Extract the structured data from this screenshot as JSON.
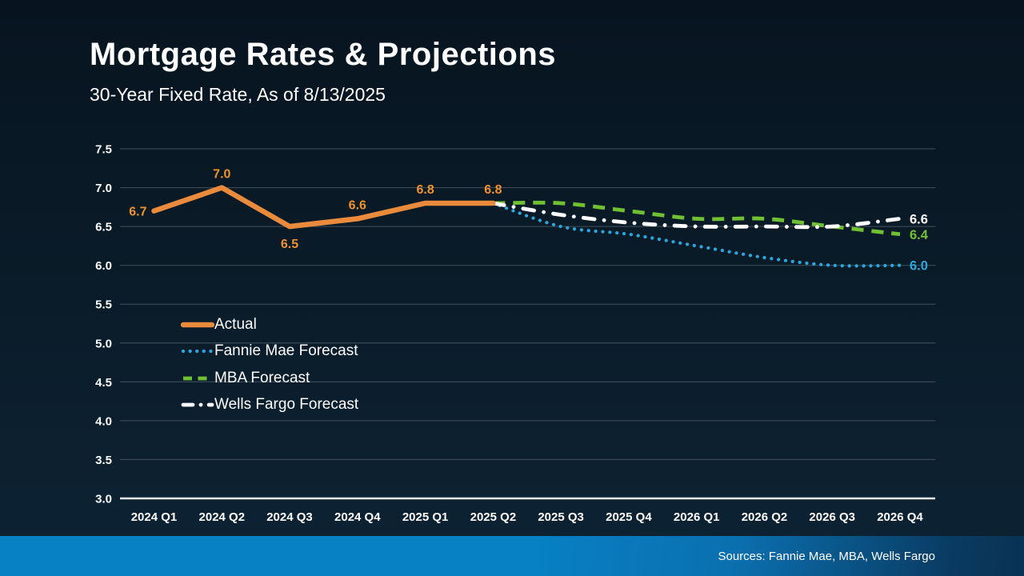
{
  "header": {
    "title": "Mortgage Rates & Projections",
    "subtitle": "30-Year Fixed Rate, As of 8/13/2025"
  },
  "footer": {
    "sources": "Sources: Fannie Mae, MBA, Wells Fargo"
  },
  "colors": {
    "background_top": "#071420",
    "background_bottom": "#0d2334",
    "footer_gradient_left": "#0880c4",
    "footer_gradient_mid": "#0b6fae",
    "footer_gradient_right": "#0a3a61",
    "grid_line": "#44525e",
    "axis_line": "#e9eef2",
    "text": "#ffffff",
    "actual_orange": "#e98a3c",
    "fannie_blue": "#2ba7e0",
    "mba_green": "#70c033",
    "wells_white": "#ffffff"
  },
  "chart_data": {
    "type": "line",
    "title": "Mortgage Rates & Projections",
    "subtitle": "30-Year Fixed Rate, As of 8/13/2025",
    "categories": [
      "2024 Q1",
      "2024 Q2",
      "2024 Q3",
      "2024 Q4",
      "2025 Q1",
      "2025 Q2",
      "2025 Q3",
      "2025 Q4",
      "2026 Q1",
      "2026 Q2",
      "2026 Q3",
      "2026 Q4"
    ],
    "xlabel": "",
    "ylabel": "",
    "ylim": [
      3.0,
      7.5
    ],
    "ytick_labels": [
      "7.5",
      "7.0",
      "6.5",
      "6.0",
      "5.5",
      "5.0",
      "4.5",
      "4.0",
      "3.5",
      "3.0"
    ],
    "grid": "horizontal",
    "legend_position": "inside-left",
    "series": [
      {
        "name": "Actual",
        "style": "solid",
        "color": "#e98a3c",
        "label_color": "#f0922d",
        "start_index": 0,
        "values": [
          6.7,
          7.0,
          6.5,
          6.6,
          6.8,
          6.8
        ],
        "point_labels": [
          "6.7",
          "7.0",
          "6.5",
          "6.6",
          "6.8",
          "6.8"
        ],
        "point_label_positions": [
          "left",
          "above",
          "below",
          "above",
          "above",
          "above"
        ]
      },
      {
        "name": "Fannie Mae Forecast",
        "style": "dotted",
        "color": "#2ba7e0",
        "start_index": 5,
        "values": [
          6.8,
          6.5,
          6.4,
          6.25,
          6.1,
          6.0,
          6.0
        ],
        "end_label": "6.0"
      },
      {
        "name": "MBA Forecast",
        "style": "dashed",
        "color": "#70c033",
        "start_index": 5,
        "values": [
          6.8,
          6.8,
          6.7,
          6.6,
          6.6,
          6.5,
          6.4
        ],
        "end_label": "6.4"
      },
      {
        "name": "Wells Fargo Forecast",
        "style": "dashdot",
        "color": "#ffffff",
        "start_index": 5,
        "values": [
          6.8,
          6.65,
          6.55,
          6.5,
          6.5,
          6.5,
          6.6
        ],
        "end_label": "6.6"
      }
    ]
  }
}
